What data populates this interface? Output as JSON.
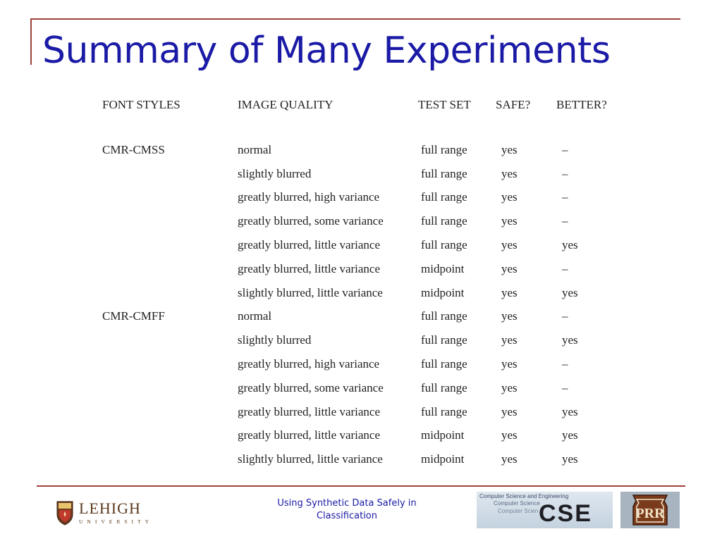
{
  "slide": {
    "title": "Summary of Many Experiments"
  },
  "table": {
    "headers": [
      "FONT STYLES",
      "IMAGE QUALITY",
      "TEST SET",
      "SAFE?",
      "BETTER?"
    ],
    "rows": [
      {
        "font": "CMR-CMSS",
        "quality": "normal",
        "test": "full range",
        "safe": "yes",
        "better": "–"
      },
      {
        "font": "",
        "quality": "slightly blurred",
        "test": "full range",
        "safe": "yes",
        "better": "–"
      },
      {
        "font": "",
        "quality": "greatly blurred, high variance",
        "test": "full range",
        "safe": "yes",
        "better": "–"
      },
      {
        "font": "",
        "quality": "greatly blurred, some variance",
        "test": "full range",
        "safe": "yes",
        "better": "–"
      },
      {
        "font": "",
        "quality": "greatly blurred, little variance",
        "test": "full range",
        "safe": "yes",
        "better": "yes"
      },
      {
        "font": "",
        "quality": "greatly blurred, little variance",
        "test": "midpoint",
        "safe": "yes",
        "better": "–"
      },
      {
        "font": "",
        "quality": "slightly blurred, little variance",
        "test": "midpoint",
        "safe": "yes",
        "better": "yes"
      },
      {
        "font": "CMR-CMFF",
        "quality": "normal",
        "test": "full range",
        "safe": "yes",
        "better": "–"
      },
      {
        "font": "",
        "quality": "slightly blurred",
        "test": "full range",
        "safe": "yes",
        "better": "yes"
      },
      {
        "font": "",
        "quality": "greatly blurred, high variance",
        "test": "full range",
        "safe": "yes",
        "better": "–"
      },
      {
        "font": "",
        "quality": "greatly blurred, some variance",
        "test": "full range",
        "safe": "yes",
        "better": "–"
      },
      {
        "font": "",
        "quality": "greatly blurred, little variance",
        "test": "full range",
        "safe": "yes",
        "better": "yes"
      },
      {
        "font": "",
        "quality": "greatly blurred, little variance",
        "test": "midpoint",
        "safe": "yes",
        "better": "yes"
      },
      {
        "font": "",
        "quality": "slightly blurred, little variance",
        "test": "midpoint",
        "safe": "yes",
        "better": "yes"
      }
    ]
  },
  "footer": {
    "lehigh_name": "LEHIGH",
    "lehigh_sub": "UNIVERSITY",
    "caption_line1": "Using Synthetic Data Safely in",
    "caption_line2": "Classification",
    "cse_small_1": "Computer Science and Engineering",
    "cse_small_2": "Computer Science",
    "cse_small_3": "Computer Scien",
    "cse_big": "CSE"
  },
  "colors": {
    "title": "#1a1aa6",
    "rule": "#a0413a",
    "caption": "#1a1aa6"
  },
  "icons": {
    "lehigh": "lehigh-shield-icon",
    "prr": "prr-keystone-icon"
  }
}
